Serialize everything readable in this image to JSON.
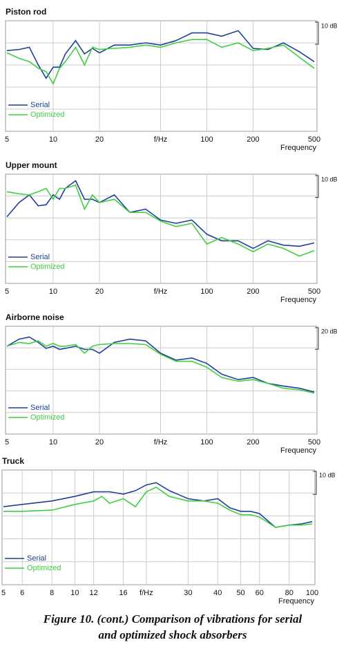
{
  "chart_data": [
    {
      "type": "line",
      "title": "Piston rod",
      "x_label": "Frequency",
      "xscale": "log",
      "grid": true,
      "xlim": [
        5,
        500
      ],
      "xticks": [
        5,
        10,
        20,
        {
          "value": 50,
          "label": "f/Hz"
        },
        100,
        200,
        500
      ],
      "ylim": [
        0,
        50
      ],
      "yticks": [
        10,
        20,
        30,
        40
      ],
      "scale": {
        "value": 10,
        "label": "10 dB"
      },
      "x": [
        5,
        6,
        7,
        8,
        9,
        10,
        11,
        12,
        14,
        16,
        18,
        20,
        25,
        31.5,
        40,
        50,
        63,
        80,
        100,
        125,
        160,
        200,
        250,
        315,
        400,
        500
      ],
      "series": [
        {
          "name": "Serial",
          "color": "#1f3f9a",
          "values": [
            36.5,
            37,
            38,
            30,
            24,
            29,
            29,
            35,
            41,
            35,
            37.5,
            35.5,
            39,
            39,
            40,
            39,
            41,
            44.5,
            44.5,
            43,
            45.5,
            37.5,
            37,
            40,
            36,
            31.5
          ]
        },
        {
          "name": "Optimized",
          "color": "#3fcf3f",
          "values": [
            35.5,
            33,
            31.5,
            28.5,
            27,
            21.5,
            28.5,
            31.5,
            38,
            30,
            38,
            37,
            37.5,
            38,
            39,
            38,
            40,
            41.5,
            41.5,
            38,
            40,
            36.5,
            37.5,
            39,
            33.5,
            28.5
          ]
        }
      ]
    },
    {
      "type": "line",
      "title": "Upper mount",
      "x_label": "Frequency",
      "xscale": "log",
      "grid": true,
      "xlim": [
        5,
        500
      ],
      "xticks": [
        5,
        10,
        20,
        {
          "value": 50,
          "label": "f/Hz"
        },
        100,
        200,
        500
      ],
      "ylim": [
        0,
        50
      ],
      "yticks": [
        10,
        20,
        30,
        40
      ],
      "scale": {
        "value": 10,
        "label": "10 dB"
      },
      "x": [
        5,
        6,
        7,
        8,
        9,
        10,
        11,
        12,
        14,
        16,
        18,
        20,
        25,
        31.5,
        40,
        50,
        63,
        80,
        100,
        125,
        160,
        200,
        250,
        315,
        400,
        500
      ],
      "series": [
        {
          "name": "Serial",
          "color": "#1f3f9a",
          "values": [
            30.5,
            37,
            40.5,
            35.5,
            36,
            40.5,
            38.5,
            43.5,
            47,
            38.5,
            38.5,
            37,
            40.5,
            32.5,
            34,
            29,
            27.5,
            29,
            22.5,
            19.5,
            19.5,
            16,
            19.5,
            17.5,
            17,
            18.5
          ]
        },
        {
          "name": "Optimized",
          "color": "#3fcf3f",
          "values": [
            42,
            41,
            40.5,
            42,
            43.5,
            38.5,
            43.5,
            43.5,
            45,
            34,
            40.5,
            37,
            38.5,
            32.5,
            32.5,
            28.5,
            26,
            27.5,
            18,
            21,
            18,
            14.5,
            18,
            16,
            12.5,
            15
          ]
        }
      ]
    },
    {
      "type": "line",
      "title": "Airborne noise",
      "x_label": "Frequency",
      "xscale": "log",
      "grid": true,
      "xlim": [
        5,
        500
      ],
      "xticks": [
        5,
        10,
        20,
        {
          "value": 50,
          "label": "f/Hz"
        },
        100,
        200,
        500
      ],
      "ylim": [
        0,
        100
      ],
      "yticks": [
        20,
        40,
        60,
        80
      ],
      "scale": {
        "value": 20,
        "label": "20 dB"
      },
      "x": [
        5,
        6,
        7,
        8,
        9,
        10,
        11,
        12,
        14,
        16,
        18,
        20,
        25,
        31.5,
        40,
        50,
        63,
        80,
        100,
        125,
        160,
        200,
        250,
        315,
        400,
        500
      ],
      "series": [
        {
          "name": "Serial",
          "color": "#1f3f9a",
          "values": [
            81.5,
            88,
            90,
            85,
            79.5,
            81.5,
            78.5,
            79.5,
            81.5,
            78.5,
            78.5,
            75,
            85,
            88,
            86.5,
            75,
            68.5,
            70.5,
            65.5,
            55.5,
            50.5,
            52.5,
            47,
            44.5,
            42.5,
            39
          ]
        },
        {
          "name": "Optimized",
          "color": "#3fcf3f",
          "values": [
            81.5,
            85,
            84,
            86.5,
            81.5,
            84,
            81.5,
            81.5,
            83,
            75,
            81.5,
            83,
            84,
            84,
            83,
            74,
            67.5,
            67.5,
            62,
            52.5,
            49,
            50.5,
            47,
            42.5,
            41,
            38
          ]
        }
      ]
    },
    {
      "type": "line",
      "title": "Truck",
      "x_label": "Frequency",
      "xscale": "log",
      "grid": true,
      "xlim": [
        5,
        100
      ],
      "xticks": [
        5,
        6,
        8,
        10,
        12,
        16,
        {
          "value": 20,
          "label": "f/Hz"
        },
        30,
        40,
        50,
        60,
        80,
        100
      ],
      "ylim": [
        0,
        50
      ],
      "yticks": [
        10,
        20,
        30,
        40
      ],
      "scale": {
        "value": 10,
        "label": "10 dB"
      },
      "x": [
        5,
        6,
        8,
        10,
        12,
        13,
        14,
        16,
        18,
        20,
        22,
        25,
        30,
        35,
        40,
        45,
        50,
        55,
        60,
        70,
        80,
        90,
        100
      ],
      "series": [
        {
          "name": "Serial",
          "color": "#1f3f9a",
          "values": [
            34,
            35,
            36.5,
            38.5,
            40.5,
            40.5,
            40.5,
            39.5,
            41,
            43.5,
            44.5,
            41,
            37.5,
            36.5,
            37.5,
            33.5,
            32,
            32,
            31,
            25,
            26,
            26.5,
            27.5
          ]
        },
        {
          "name": "Optimized",
          "color": "#3fcf3f",
          "values": [
            32,
            32,
            32.5,
            35,
            36.5,
            38.5,
            35.5,
            37.5,
            34,
            40.5,
            42.5,
            38.5,
            36.5,
            36.5,
            35.5,
            32.5,
            30.5,
            30.5,
            29.5,
            25,
            26,
            26,
            26.5
          ]
        }
      ]
    }
  ],
  "caption": [
    "Figure 10. (cont.) Comparison of vibrations for serial",
    "and optimized shock absorbers"
  ]
}
